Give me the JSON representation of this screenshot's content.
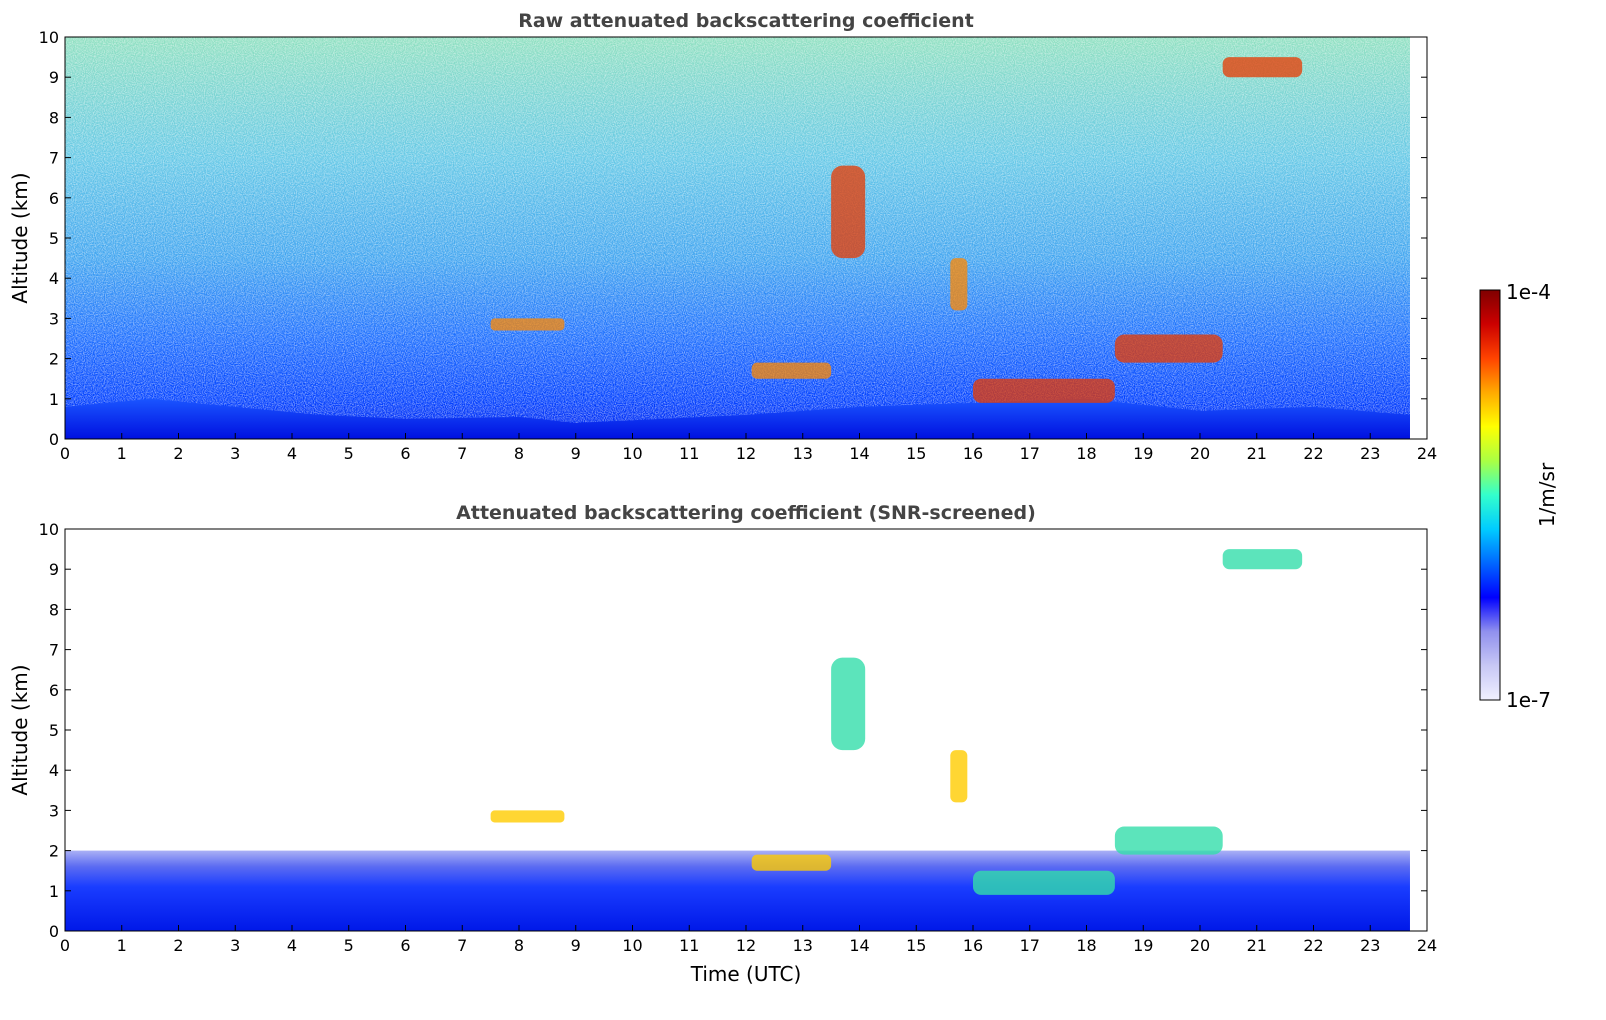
{
  "chart_data": [
    {
      "type": "heatmap",
      "title": "Raw attenuated backscattering coefficient",
      "xlabel": "",
      "ylabel": "Altitude (km)",
      "xlim": [
        0,
        24
      ],
      "ylim": [
        0,
        10
      ],
      "xticks": [
        "0",
        "1",
        "2",
        "3",
        "4",
        "5",
        "6",
        "7",
        "8",
        "9",
        "10",
        "11",
        "12",
        "13",
        "14",
        "15",
        "16",
        "17",
        "18",
        "19",
        "20",
        "21",
        "22",
        "23",
        "24"
      ],
      "yticks": [
        "0",
        "1",
        "2",
        "3",
        "4",
        "5",
        "6",
        "7",
        "8",
        "9",
        "10"
      ],
      "data_end_time": 23.7,
      "features": [
        {
          "kind": "boundary_layer",
          "points": [
            [
              0,
              0.8
            ],
            [
              1.5,
              1.0
            ],
            [
              3,
              0.8
            ],
            [
              4.5,
              0.6
            ],
            [
              6,
              0.5
            ],
            [
              8,
              0.55
            ],
            [
              9,
              0.4
            ],
            [
              12,
              0.6
            ],
            [
              14,
              0.8
            ],
            [
              16,
              0.9
            ],
            [
              18,
              1.0
            ],
            [
              20,
              0.7
            ],
            [
              22,
              0.8
            ],
            [
              23.7,
              0.6
            ]
          ]
        },
        {
          "kind": "cloud",
          "time": [
            13.5,
            14.1
          ],
          "alt": [
            4.5,
            6.8
          ]
        },
        {
          "kind": "cloud",
          "time": [
            15.6,
            15.9
          ],
          "alt": [
            3.2,
            4.5
          ]
        },
        {
          "kind": "cloud",
          "time": [
            20.4,
            21.8
          ],
          "alt": [
            9.0,
            9.5
          ]
        },
        {
          "kind": "cloud",
          "time": [
            7.5,
            8.8
          ],
          "alt": [
            2.7,
            3.0
          ]
        },
        {
          "kind": "cloud",
          "time": [
            18.5,
            20.4
          ],
          "alt": [
            1.9,
            2.6
          ]
        },
        {
          "kind": "cloud",
          "time": [
            12.1,
            13.5
          ],
          "alt": [
            1.5,
            1.9
          ]
        },
        {
          "kind": "cloud",
          "time": [
            16.0,
            18.5
          ],
          "alt": [
            0.9,
            1.5
          ]
        }
      ]
    },
    {
      "type": "heatmap",
      "title": "Attenuated backscattering coefficient (SNR-screened)",
      "xlabel": "Time (UTC)",
      "ylabel": "Altitude (km)",
      "xlim": [
        0,
        24
      ],
      "ylim": [
        0,
        10
      ],
      "xticks": [
        "0",
        "1",
        "2",
        "3",
        "4",
        "5",
        "6",
        "7",
        "8",
        "9",
        "10",
        "11",
        "12",
        "13",
        "14",
        "15",
        "16",
        "17",
        "18",
        "19",
        "20",
        "21",
        "22",
        "23",
        "24"
      ],
      "yticks": [
        "0",
        "1",
        "2",
        "3",
        "4",
        "5",
        "6",
        "7",
        "8",
        "9",
        "10"
      ],
      "data_end_time": 23.7,
      "screened_top_alt": 2.0
    }
  ],
  "colorbar": {
    "label": "1/m/sr",
    "max_label": "1e-4",
    "min_label": "1e-7",
    "colormap": "jet",
    "colors": [
      "#f0f0ff",
      "#c8c8f5",
      "#9090ee",
      "#0000ff",
      "#0066ff",
      "#00ccff",
      "#33ffcc",
      "#aaff44",
      "#ffff00",
      "#ffaa00",
      "#ff4400",
      "#cc0000",
      "#800000"
    ]
  }
}
